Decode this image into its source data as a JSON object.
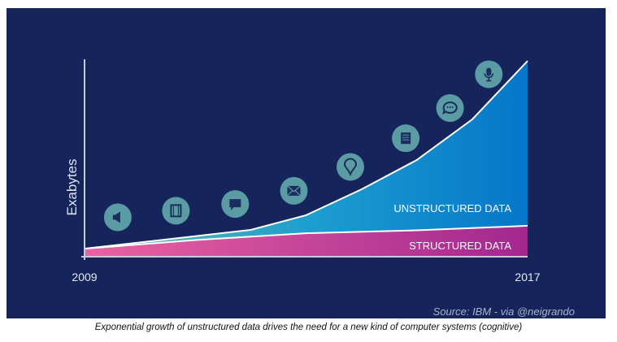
{
  "chart_data": {
    "type": "area",
    "title": "",
    "xlabel": "",
    "ylabel": "Exabytes",
    "x_tick_labels": [
      "2009",
      "2017"
    ],
    "xlim": [
      2009,
      2017
    ],
    "ylim": [
      0,
      100
    ],
    "y_units_note": "",
    "grid": false,
    "series": [
      {
        "name": "STRUCTURED DATA",
        "x": [
          2009,
          2011,
          2013,
          2015,
          2017
        ],
        "values": [
          4.1,
          8.5,
          12.0,
          13.5,
          15.8
        ],
        "colors": [
          "#ea62a2",
          "#a2288f"
        ]
      },
      {
        "name": "UNSTRUCTURED DATA",
        "x": [
          2009,
          2011,
          2012,
          2013,
          2014,
          2015,
          2016,
          2017
        ],
        "values": [
          4.1,
          10.5,
          13.7,
          21.2,
          34.4,
          49.4,
          70.1,
          100
        ],
        "colors": [
          "#6fb9a4",
          "#1d9fd0",
          "#0676c9"
        ]
      }
    ],
    "icons": [
      {
        "name": "megaphone-icon",
        "x": 2009.6
      },
      {
        "name": "film-icon",
        "x": 2010.65
      },
      {
        "name": "chat-icon",
        "x": 2011.72
      },
      {
        "name": "mail-icon",
        "x": 2012.78
      },
      {
        "name": "location-pin-icon",
        "x": 2013.8
      },
      {
        "name": "document-icon",
        "x": 2014.8
      },
      {
        "name": "speech-bubble-icon",
        "x": 2015.6
      },
      {
        "name": "microphone-icon",
        "x": 2016.3
      }
    ],
    "source": "Source: IBM - via @neigrando"
  },
  "caption": "Exponential growth of unstructured data drives the need for a new kind of computer systems (cognitive)",
  "colors": {
    "background": "#15255c",
    "icon_circle": "#5b9ba3",
    "icon_glyph": "#1b2d5e",
    "axis": "#c8cbd8"
  }
}
